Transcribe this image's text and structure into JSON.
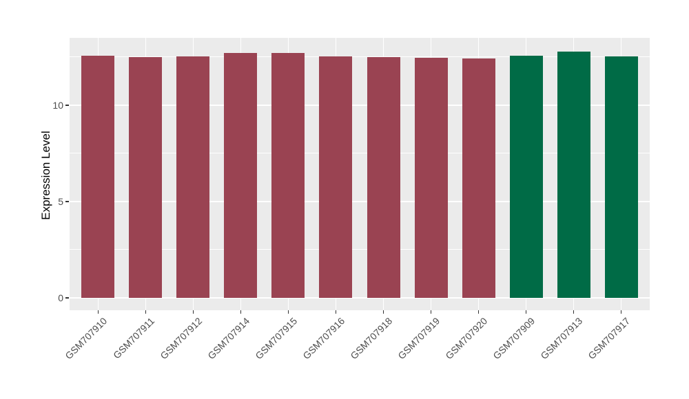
{
  "chart_data": {
    "type": "bar",
    "title": "",
    "xlabel": "",
    "ylabel": "Expression Level",
    "categories": [
      "GSM707910",
      "GSM707911",
      "GSM707912",
      "GSM707914",
      "GSM707915",
      "GSM707916",
      "GSM707918",
      "GSM707919",
      "GSM707920",
      "GSM707909",
      "GSM707913",
      "GSM707917"
    ],
    "values": [
      12.57,
      12.5,
      12.54,
      12.71,
      12.71,
      12.54,
      12.5,
      12.46,
      12.43,
      12.57,
      12.79,
      12.54
    ],
    "bar_colors": [
      "#9A4352",
      "#9A4352",
      "#9A4352",
      "#9A4352",
      "#9A4352",
      "#9A4352",
      "#9A4352",
      "#9A4352",
      "#9A4352",
      "#006B46",
      "#006B46",
      "#006B46"
    ],
    "y_ticks": [
      0,
      5,
      10
    ],
    "y_tick_labels": [
      "0",
      "5",
      "10"
    ],
    "y_minor_ticks": [
      2.5,
      7.5,
      12.5
    ],
    "ylim": [
      -0.643,
      13.5
    ],
    "grid": true,
    "legend": "none",
    "colors": {
      "panel_bg": "#EBEBEB",
      "grid": "#FFFFFF",
      "bar_group_1": "#9A4352",
      "bar_group_2": "#006B46",
      "tick_mark": "#333333",
      "tick_text": "#4D4D4D",
      "axis_title_text": "#000000"
    }
  }
}
